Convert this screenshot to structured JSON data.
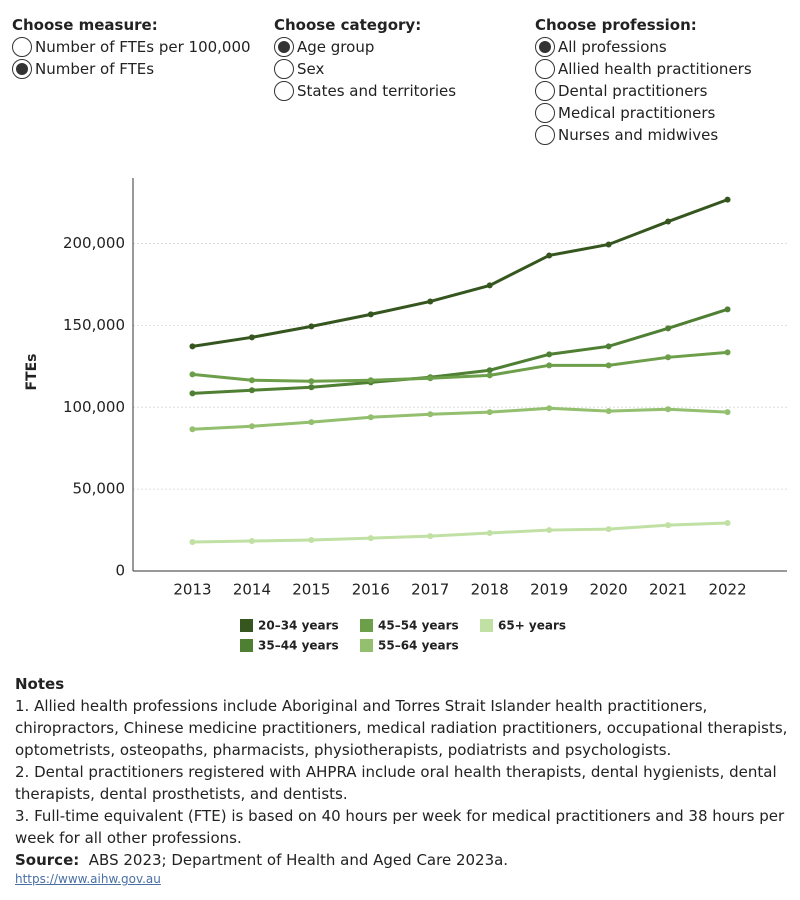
{
  "controls": [
    {
      "title": "Choose measure:",
      "options": [
        "Number of FTEs per 100,000",
        "Number of FTEs"
      ],
      "selected": 1
    },
    {
      "title": "Choose category:",
      "options": [
        "Age group",
        "Sex",
        "States and territories"
      ],
      "selected": 0
    },
    {
      "title": "Choose profession:",
      "options": [
        "All professions",
        "Allied health practitioners",
        "Dental practitioners",
        "Medical practitioners",
        "Nurses and midwives"
      ],
      "selected": 0
    }
  ],
  "chart_data": {
    "type": "line",
    "y_label": "FTEs",
    "categories": [
      "2013",
      "2014",
      "2015",
      "2016",
      "2017",
      "2018",
      "2019",
      "2020",
      "2021",
      "2022"
    ],
    "ylim": [
      0,
      240000
    ],
    "yticks": [
      0,
      {
        "value": 50000,
        "label": "50,000"
      },
      {
        "value": 100000,
        "label": "100,000"
      },
      {
        "value": 150000,
        "label": "150,000"
      },
      {
        "value": 200000,
        "label": "200,000"
      }
    ],
    "grid": true,
    "series": [
      {
        "name": "20–34 years",
        "color": "#36561f",
        "values": [
          137200,
          142700,
          149400,
          156700,
          164600,
          174400,
          192700,
          199400,
          213400,
          226800
        ]
      },
      {
        "name": "35–44 years",
        "color": "#4e7f33",
        "values": [
          108500,
          110400,
          112200,
          115200,
          118300,
          122600,
          132300,
          137200,
          148200,
          159800
        ]
      },
      {
        "name": "45–54 years",
        "color": "#6d9e4a",
        "values": [
          120100,
          116500,
          115900,
          116500,
          117700,
          119500,
          125600,
          125600,
          130500,
          133500
        ]
      },
      {
        "name": "55–64 years",
        "color": "#93bf6f",
        "values": [
          86600,
          88400,
          90900,
          93900,
          95700,
          97000,
          99400,
          97600,
          98800,
          97000
        ]
      },
      {
        "name": "65+ years",
        "color": "#c0e0a4",
        "values": [
          17700,
          18300,
          18900,
          20100,
          21300,
          23200,
          25000,
          25600,
          28000,
          29300
        ]
      }
    ]
  },
  "notes": {
    "title": "Notes",
    "items": [
      "1. Allied health professions include Aboriginal and Torres Strait Islander health practitioners, chiropractors, Chinese medicine practitioners, medical radiation practitioners, occupational therapists, optometrists, osteopaths, pharmacists, physiotherapists, podiatrists and psychologists.",
      "2. Dental practitioners registered with AHPRA include oral health therapists, dental hygienists, dental therapists, dental prosthetists, and dentists.",
      "3. Full-time equivalent (FTE) is based on 40 hours per week for medical practitioners and 38 hours per week for all other professions."
    ],
    "source_label": "Source:",
    "source": "ABS 2023; Department of Health and Aged Care 2023a.",
    "link": "https://www.aihw.gov.au"
  }
}
